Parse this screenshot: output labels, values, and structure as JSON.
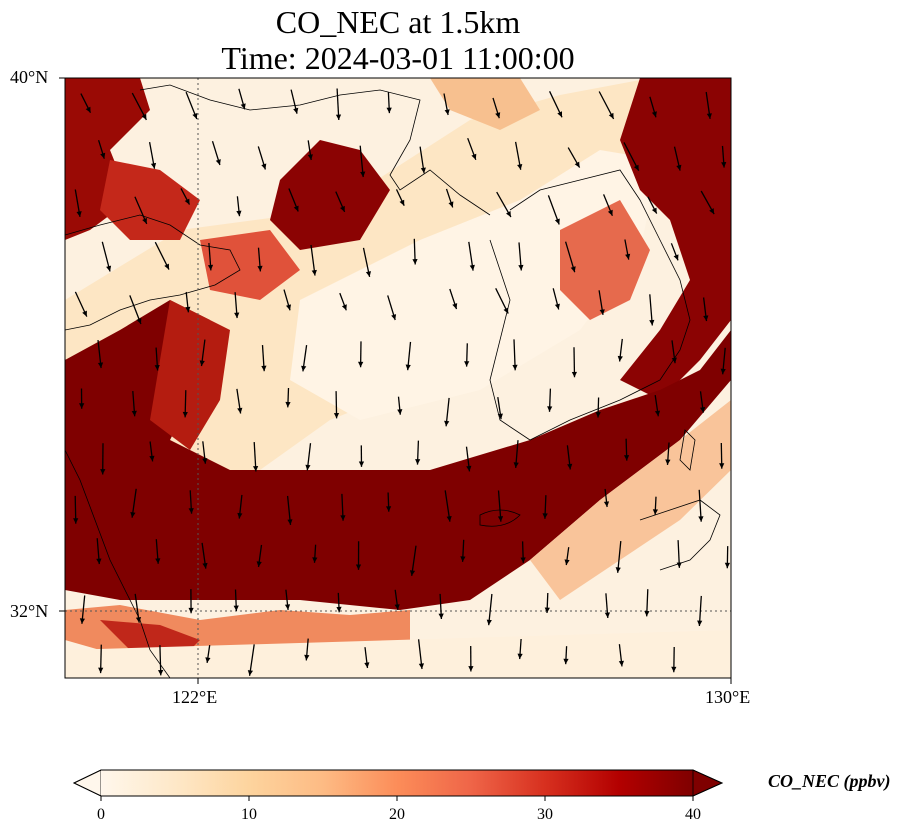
{
  "title": {
    "line1": "CO_NEC at 1.5km",
    "line2": "Time: 2024-03-01 11:00:00"
  },
  "axes": {
    "lat_ticks": [
      "40°N",
      "32°N"
    ],
    "lon_ticks": [
      "122°E",
      "130°E"
    ],
    "lon_range": [
      120,
      130
    ],
    "lat_range": [
      31,
      40
    ],
    "gridlines": [
      {
        "lon": 122
      },
      {
        "lat": 32
      }
    ]
  },
  "colorbar": {
    "label": "CO_NEC (ppbv)",
    "ticks": [
      "0",
      "10",
      "20",
      "30",
      "40"
    ],
    "range": [
      0,
      40
    ],
    "colormap": "OrRd",
    "extend": "both",
    "colors": [
      "#fff7ec",
      "#fee8c8",
      "#fdd49e",
      "#fdbb84",
      "#fc8d59",
      "#ef6548",
      "#d7301f",
      "#b30000",
      "#7f0000"
    ]
  }
}
